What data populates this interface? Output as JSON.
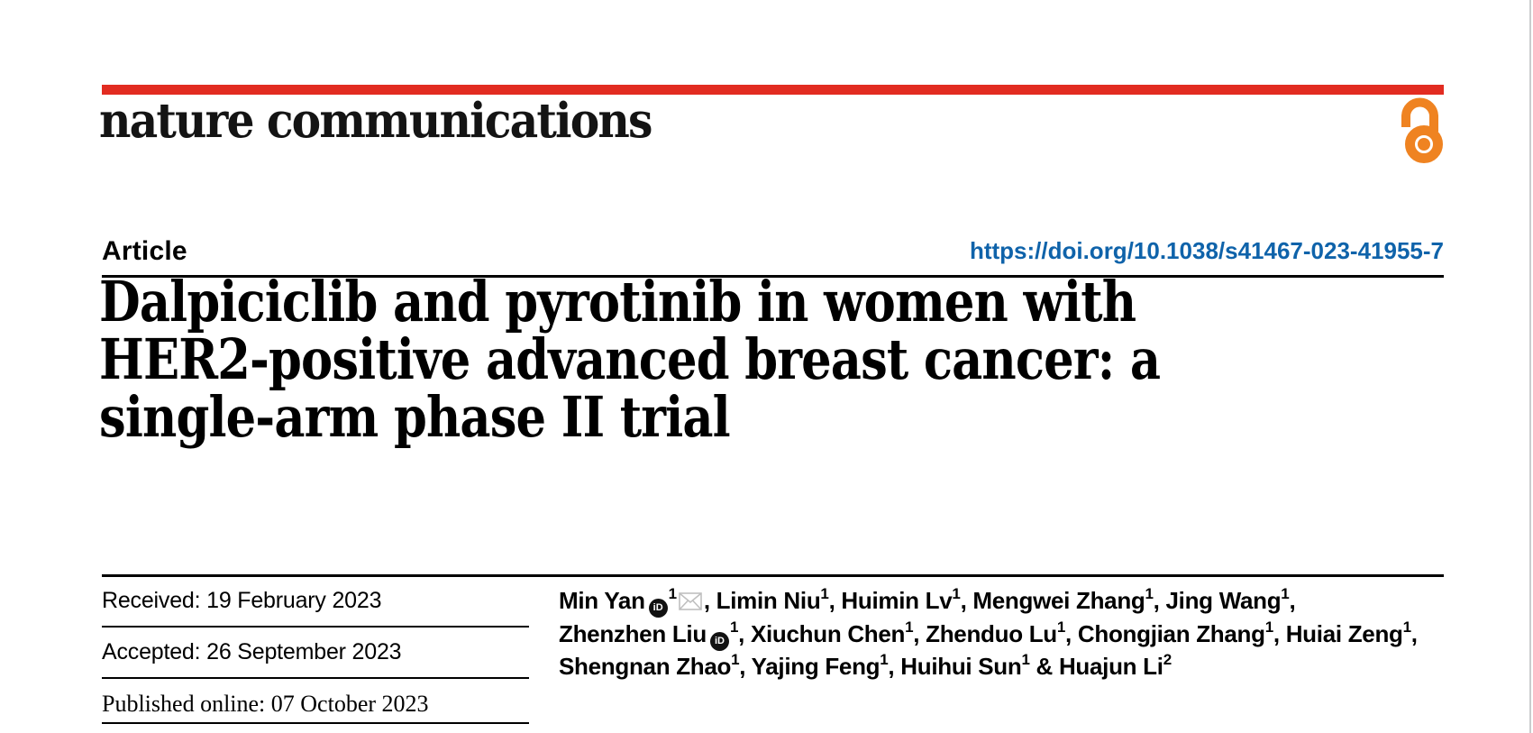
{
  "brand": {
    "journal_name": "nature communications",
    "accent_red": "#e22c21",
    "open_access_orange": "#ef8321",
    "open_access_icon": "open padlock"
  },
  "header": {
    "article_label": "Article",
    "doi_link": "https://doi.org/10.1038/s41467-023-41955-7",
    "doi_color": "#0f63aa"
  },
  "title": {
    "lines": [
      "Dalpiciclib and pyrotinib in women with",
      "HER2-positive advanced breast cancer: a",
      "single-arm phase II trial"
    ]
  },
  "dates": [
    {
      "label": "Received:",
      "value": "19 February 2023"
    },
    {
      "label": "Accepted:",
      "value": "26 September 2023"
    },
    {
      "label": "Published online:",
      "value": "07 October 2023"
    }
  ],
  "authors": {
    "lines": [
      [
        {
          "t": "text",
          "v": "Min Yan"
        },
        {
          "t": "orcid",
          "v": "iD"
        },
        {
          "t": "sup",
          "v": "1"
        },
        {
          "t": "mail",
          "v": "envelope-icon"
        },
        {
          "t": "text",
          "v": ", Limin Niu"
        },
        {
          "t": "sup",
          "v": "1"
        },
        {
          "t": "text",
          "v": ", Huimin Lv"
        },
        {
          "t": "sup",
          "v": "1"
        },
        {
          "t": "text",
          "v": ", Mengwei Zhang"
        },
        {
          "t": "sup",
          "v": "1"
        },
        {
          "t": "text",
          "v": ", Jing Wang"
        },
        {
          "t": "sup",
          "v": "1"
        },
        {
          "t": "text",
          "v": ","
        }
      ],
      [
        {
          "t": "text",
          "v": "Zhenzhen Liu"
        },
        {
          "t": "orcid",
          "v": "iD"
        },
        {
          "t": "sup",
          "v": "1"
        },
        {
          "t": "text",
          "v": ", Xiuchun Chen"
        },
        {
          "t": "sup",
          "v": "1"
        },
        {
          "t": "text",
          "v": ", Zhenduo Lu"
        },
        {
          "t": "sup",
          "v": "1"
        },
        {
          "t": "text",
          "v": ", Chongjian Zhang"
        },
        {
          "t": "sup",
          "v": "1"
        },
        {
          "t": "text",
          "v": ", Huiai Zeng"
        },
        {
          "t": "sup",
          "v": "1"
        },
        {
          "t": "text",
          "v": ","
        }
      ],
      [
        {
          "t": "text",
          "v": "Shengnan Zhao"
        },
        {
          "t": "sup",
          "v": "1"
        },
        {
          "t": "text",
          "v": ", Yajing Feng"
        },
        {
          "t": "sup",
          "v": "1"
        },
        {
          "t": "text",
          "v": ", Huihui Sun"
        },
        {
          "t": "sup",
          "v": "1"
        },
        {
          "t": "text",
          "v": " & Huajun Li"
        },
        {
          "t": "sup",
          "v": "2"
        }
      ]
    ]
  }
}
